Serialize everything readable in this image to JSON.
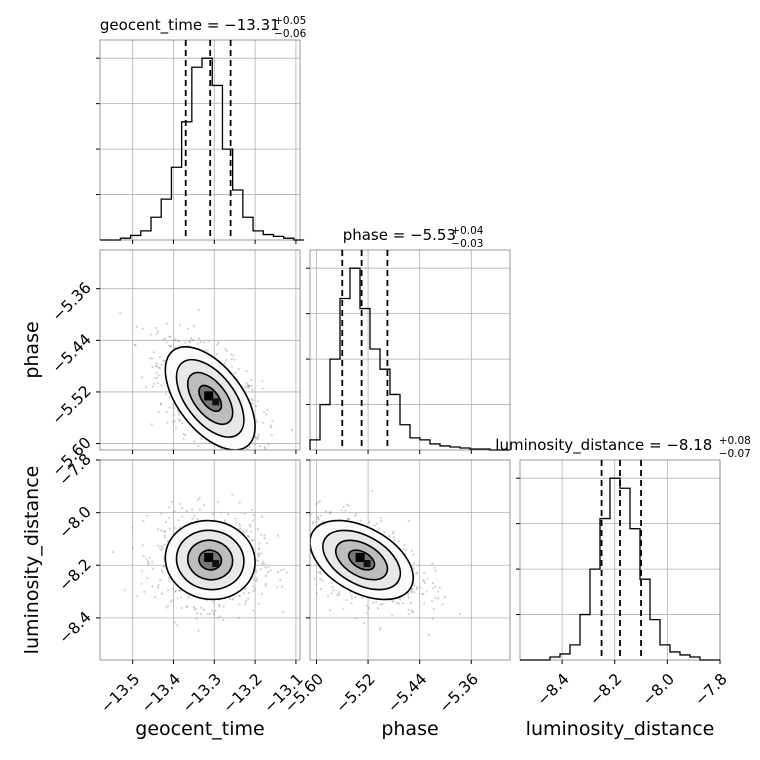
{
  "chart_data": {
    "type": "corner",
    "parameters": [
      "geocent_time",
      "phase",
      "luminosity_distance"
    ],
    "titles": [
      {
        "param": "geocent_time",
        "text": "geocent_time = −13.31",
        "sup": "+0.05",
        "sub": "−0.06"
      },
      {
        "param": "phase",
        "text": "phase = −5.53",
        "sup": "+0.04",
        "sub": "−0.03"
      },
      {
        "param": "luminosity_distance",
        "text": "luminosity_distance = −8.18",
        "sup": "+0.08",
        "sub": "−0.07"
      }
    ],
    "axes": {
      "geocent_time": {
        "range": [
          -13.58,
          -13.09
        ],
        "ticks": [
          -13.5,
          -13.4,
          -13.3,
          -13.2,
          -13.1
        ],
        "tick_labels": [
          "−13.5",
          "−13.4",
          "−13.3",
          "−13.2",
          "−13.1"
        ]
      },
      "phase": {
        "range": [
          -5.61,
          -5.3
        ],
        "ticks": [
          -5.6,
          -5.52,
          -5.44,
          -5.36
        ],
        "tick_labels": [
          "−5.60",
          "−5.52",
          "−5.44",
          "−5.36"
        ]
      },
      "luminosity_distance": {
        "range": [
          -8.56,
          -7.8
        ],
        "ticks": [
          -8.4,
          -8.2,
          -8.0,
          -7.8
        ],
        "tick_labels": [
          "−8.4",
          "−8.2",
          "−8.0",
          "−7.8"
        ]
      }
    },
    "quantiles": {
      "geocent_time": [
        -13.37,
        -13.31,
        -13.26
      ],
      "phase": [
        -5.56,
        -5.53,
        -5.49
      ],
      "luminosity_distance": [
        -8.25,
        -8.18,
        -8.1
      ]
    },
    "histograms": {
      "geocent_time": {
        "bin_edges": [
          -13.58,
          -13.555,
          -13.53,
          -13.505,
          -13.48,
          -13.455,
          -13.43,
          -13.405,
          -13.38,
          -13.355,
          -13.33,
          -13.305,
          -13.28,
          -13.255,
          -13.23,
          -13.205,
          -13.18,
          -13.155,
          -13.13,
          -13.105,
          -13.08
        ],
        "counts": [
          0,
          0,
          2,
          5,
          10,
          25,
          45,
          80,
          130,
          190,
          200,
          170,
          100,
          55,
          25,
          10,
          6,
          4,
          2,
          0
        ]
      },
      "phase": {
        "bin_edges": [
          -5.61,
          -5.5945,
          -5.579,
          -5.5635,
          -5.548,
          -5.5325,
          -5.517,
          -5.5015,
          -5.486,
          -5.4705,
          -5.455,
          -5.4395,
          -5.424,
          -5.4085,
          -5.393,
          -5.3775,
          -5.362,
          -5.3465,
          -5.331,
          -5.3155,
          -5.3
        ],
        "counts": [
          10,
          45,
          90,
          150,
          180,
          140,
          100,
          80,
          55,
          25,
          12,
          10,
          6,
          4,
          3,
          2,
          1,
          1,
          0,
          0
        ]
      },
      "luminosity_distance": {
        "bin_edges": [
          -8.56,
          -8.522,
          -8.484,
          -8.446,
          -8.408,
          -8.37,
          -8.332,
          -8.294,
          -8.256,
          -8.218,
          -8.18,
          -8.142,
          -8.104,
          -8.066,
          -8.028,
          -7.99,
          -7.952,
          -7.914,
          -7.876,
          -7.838,
          -7.8
        ],
        "counts": [
          0,
          0,
          0,
          3,
          6,
          15,
          45,
          90,
          140,
          180,
          170,
          130,
          80,
          40,
          15,
          8,
          5,
          3,
          0,
          0
        ]
      }
    },
    "joint": [
      {
        "x": "geocent_time",
        "y": "phase",
        "mean": [
          -13.31,
          -5.53
        ],
        "sd": [
          0.055,
          0.04
        ],
        "rho": -0.55,
        "levels": [
          0.5,
          1.0,
          1.5,
          2.0
        ]
      },
      {
        "x": "geocent_time",
        "y": "luminosity_distance",
        "mean": [
          -13.31,
          -8.18
        ],
        "sd": [
          0.055,
          0.075
        ],
        "rho": -0.05,
        "levels": [
          0.5,
          1.0,
          1.5,
          2.0
        ]
      },
      {
        "x": "phase",
        "y": "luminosity_distance",
        "mean": [
          -5.53,
          -8.18
        ],
        "sd": [
          0.04,
          0.075
        ],
        "rho": -0.45,
        "levels": [
          0.5,
          1.0,
          1.5,
          2.0
        ]
      }
    ],
    "grid": true,
    "colors": {
      "line": "#000000",
      "grid": "#b0b0b0",
      "scatter": "#9a9a9a"
    }
  }
}
